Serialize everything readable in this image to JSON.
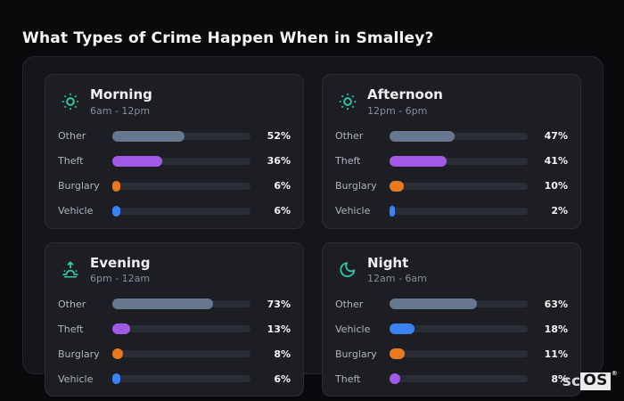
{
  "page": {
    "title": "What Types of Crime Happen When in Smalley?"
  },
  "brand": {
    "prefix": "sc",
    "boxed": "OS",
    "registered": "®"
  },
  "colors": {
    "background": "#0a0a0d",
    "panel": "#15151a",
    "card": "#1d1e23",
    "track": "#2b2d34",
    "icon_teal": "#2fc9a0",
    "other": "#67788e",
    "theft": "#a259e6",
    "burglary": "#e8791f",
    "vehicle": "#3b82f6"
  },
  "cards": [
    {
      "icon": "sun",
      "title": "Morning",
      "time_range": "6am - 12pm",
      "rows": [
        {
          "label": "Other",
          "value": 52,
          "display": "52%",
          "color": "#67788e"
        },
        {
          "label": "Theft",
          "value": 36,
          "display": "36%",
          "color": "#a259e6"
        },
        {
          "label": "Burglary",
          "value": 6,
          "display": "6%",
          "color": "#e8791f"
        },
        {
          "label": "Vehicle",
          "value": 6,
          "display": "6%",
          "color": "#3b82f6"
        }
      ]
    },
    {
      "icon": "sun",
      "title": "Afternoon",
      "time_range": "12pm - 6pm",
      "rows": [
        {
          "label": "Other",
          "value": 47,
          "display": "47%",
          "color": "#67788e"
        },
        {
          "label": "Theft",
          "value": 41,
          "display": "41%",
          "color": "#a259e6"
        },
        {
          "label": "Burglary",
          "value": 10,
          "display": "10%",
          "color": "#e8791f"
        },
        {
          "label": "Vehicle",
          "value": 2,
          "display": "2%",
          "color": "#3b82f6"
        }
      ]
    },
    {
      "icon": "sunrise",
      "title": "Evening",
      "time_range": "6pm - 12am",
      "rows": [
        {
          "label": "Other",
          "value": 73,
          "display": "73%",
          "color": "#67788e"
        },
        {
          "label": "Theft",
          "value": 13,
          "display": "13%",
          "color": "#a259e6"
        },
        {
          "label": "Burglary",
          "value": 8,
          "display": "8%",
          "color": "#e8791f"
        },
        {
          "label": "Vehicle",
          "value": 6,
          "display": "6%",
          "color": "#3b82f6"
        }
      ]
    },
    {
      "icon": "moon",
      "title": "Night",
      "time_range": "12am - 6am",
      "rows": [
        {
          "label": "Other",
          "value": 63,
          "display": "63%",
          "color": "#67788e"
        },
        {
          "label": "Vehicle",
          "value": 18,
          "display": "18%",
          "color": "#3b82f6"
        },
        {
          "label": "Burglary",
          "value": 11,
          "display": "11%",
          "color": "#e8791f"
        },
        {
          "label": "Theft",
          "value": 8,
          "display": "8%",
          "color": "#a259e6"
        }
      ]
    }
  ],
  "chart_data": [
    {
      "type": "bar",
      "orientation": "horizontal",
      "title": "Morning",
      "subtitle": "6am - 12pm",
      "categories": [
        "Other",
        "Theft",
        "Burglary",
        "Vehicle"
      ],
      "values": [
        52,
        36,
        6,
        6
      ],
      "unit": "%",
      "xlim": [
        0,
        100
      ],
      "grid": false,
      "legend": false
    },
    {
      "type": "bar",
      "orientation": "horizontal",
      "title": "Afternoon",
      "subtitle": "12pm - 6pm",
      "categories": [
        "Other",
        "Theft",
        "Burglary",
        "Vehicle"
      ],
      "values": [
        47,
        41,
        10,
        2
      ],
      "unit": "%",
      "xlim": [
        0,
        100
      ],
      "grid": false,
      "legend": false
    },
    {
      "type": "bar",
      "orientation": "horizontal",
      "title": "Evening",
      "subtitle": "6pm - 12am",
      "categories": [
        "Other",
        "Theft",
        "Burglary",
        "Vehicle"
      ],
      "values": [
        73,
        13,
        8,
        6
      ],
      "unit": "%",
      "xlim": [
        0,
        100
      ],
      "grid": false,
      "legend": false
    },
    {
      "type": "bar",
      "orientation": "horizontal",
      "title": "Night",
      "subtitle": "12am - 6am",
      "categories": [
        "Other",
        "Vehicle",
        "Burglary",
        "Theft"
      ],
      "values": [
        63,
        18,
        11,
        8
      ],
      "unit": "%",
      "xlim": [
        0,
        100
      ],
      "grid": false,
      "legend": false
    }
  ]
}
